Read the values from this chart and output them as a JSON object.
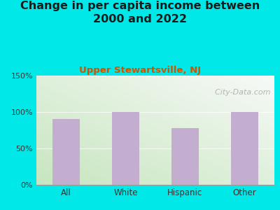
{
  "title": "Change in per capita income between\n2000 and 2022",
  "subtitle": "Upper Stewartsville, NJ",
  "categories": [
    "All",
    "White",
    "Hispanic",
    "Other"
  ],
  "values": [
    90,
    100,
    78,
    100
  ],
  "bar_color": "#c4aed0",
  "background_outer": "#00e8e8",
  "yticks": [
    0,
    50,
    100,
    150
  ],
  "ytick_labels": [
    "0%",
    "50%",
    "100%",
    "150%"
  ],
  "ylim": [
    0,
    150
  ],
  "title_fontsize": 11.5,
  "subtitle_fontsize": 9.5,
  "subtitle_color": "#cc5500",
  "watermark": "  City-Data.com",
  "watermark_icon": "●"
}
